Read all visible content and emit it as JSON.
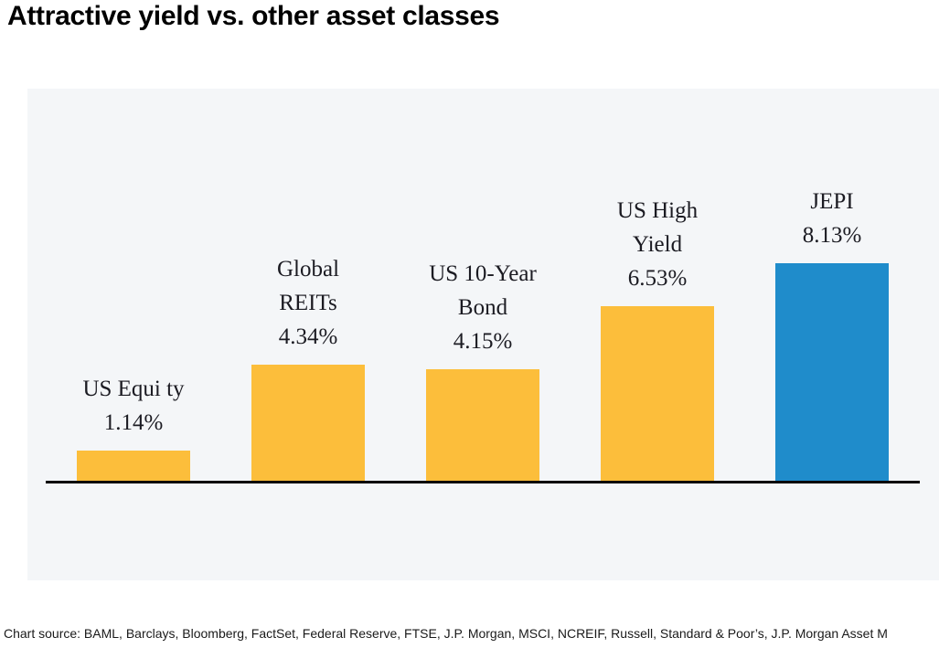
{
  "title": "Attractive yield vs. other asset classes",
  "footer": "Chart source: BAML, Barclays, Bloomberg, FactSet, Federal Reserve, FTSE, J.P. Morgan, MSCI, NCREIF, Russell, Standard & Poor’s, J.P. Morgan Asset M",
  "colors": {
    "bar_yellow": "#FCBE3B",
    "bar_blue": "#1F8CCB",
    "panel_bg": "#F4F6F8",
    "axis": "#060606",
    "label_text": "#1b1b22"
  },
  "chart_data": {
    "type": "bar",
    "title": "Attractive yield vs. other asset classes",
    "categories": [
      "US Equi ty",
      "Global REITs",
      "US 10-Year Bond",
      "US High Yield",
      "JEPI"
    ],
    "label_lines": [
      [
        "US Equi ty"
      ],
      [
        "Global",
        "REITs"
      ],
      [
        "US 10-Year",
        "Bond"
      ],
      [
        "US High",
        "Yield"
      ],
      [
        "JEPI"
      ]
    ],
    "values": [
      1.14,
      4.34,
      4.15,
      6.53,
      8.13
    ],
    "value_labels": [
      "1.14%",
      "4.34%",
      "4.15%",
      "6.53%",
      "8.13%"
    ],
    "bar_colors": [
      "#FCBE3B",
      "#FCBE3B",
      "#FCBE3B",
      "#FCBE3B",
      "#1F8CCB"
    ],
    "unit": "%",
    "xlabel": "",
    "ylabel": "",
    "ylim": [
      0,
      10
    ],
    "grid": false,
    "legend": "none",
    "data_label_position": "above-bar",
    "baseline": "black solid line"
  }
}
